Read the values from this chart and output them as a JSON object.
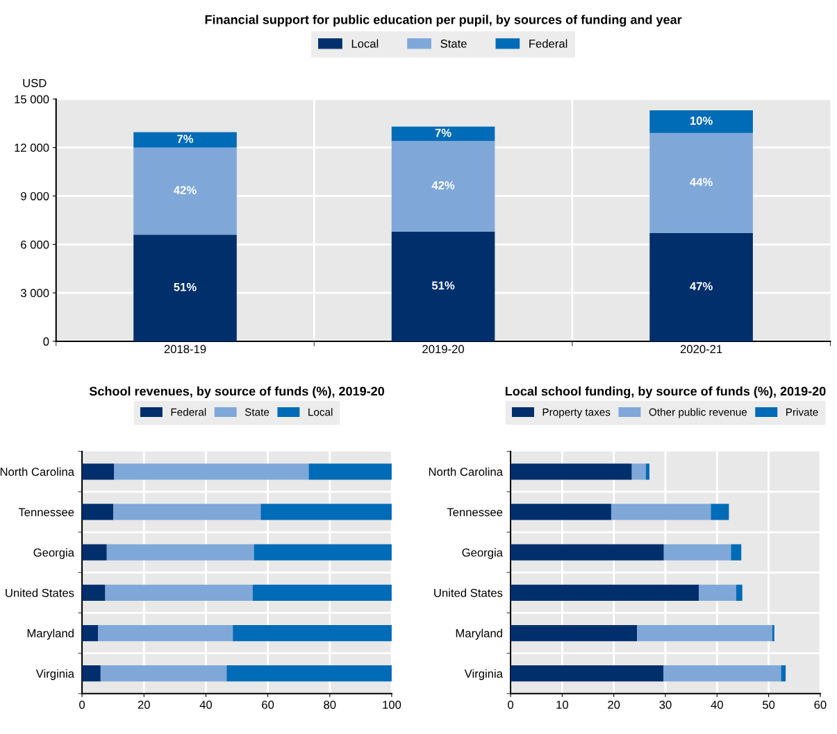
{
  "chart_data": [
    {
      "type": "bar",
      "title": "Financial support for public education per pupil, by sources of funding and year",
      "ylabel": "USD",
      "categories": [
        "2018-19",
        "2019-20",
        "2020-21"
      ],
      "stacked": true,
      "series": [
        {
          "name": "Local",
          "color": "#002f6c",
          "values": [
            6600,
            6800,
            6700
          ]
        },
        {
          "name": "State",
          "color": "#7fa8d9",
          "values": [
            5400,
            5600,
            6200
          ]
        },
        {
          "name": "Federal",
          "color": "#006bb6",
          "values": [
            950,
            900,
            1400
          ]
        }
      ],
      "annotations": [
        "51%",
        "42%",
        "7%",
        "51%",
        "42%",
        "7%",
        "47%",
        "44%",
        "10%"
      ],
      "ylim": [
        0,
        15000
      ],
      "yticks": [
        0,
        {
          "value": 3000,
          "label": "3 000"
        },
        {
          "value": 6000,
          "label": "6 000"
        },
        {
          "value": 9000,
          "label": "9 000"
        },
        {
          "value": 12000,
          "label": "12 000"
        },
        {
          "value": 15000,
          "label": "15 000"
        }
      ],
      "grid": true,
      "legend": "top"
    },
    {
      "type": "bar",
      "title": "School revenues, by source of funds (%), 2019-20",
      "orientation": "horizontal",
      "stacked": true,
      "categories": [
        "North Carolina",
        "Tennessee",
        "Georgia",
        "United States",
        "Maryland",
        "Virginia"
      ],
      "series": [
        {
          "name": "Federal",
          "color": "#002f6c",
          "values": [
            10.4,
            10.1,
            8.0,
            7.5,
            5.2,
            6.0
          ]
        },
        {
          "name": "State",
          "color": "#7fa8d9",
          "values": [
            62.8,
            47.6,
            47.5,
            47.6,
            43.5,
            40.7
          ]
        },
        {
          "name": "Local",
          "color": "#006bb6",
          "values": [
            26.8,
            42.3,
            44.5,
            44.9,
            51.3,
            53.3
          ]
        }
      ],
      "xlim": [
        0,
        100
      ],
      "xticks": [
        0,
        20,
        40,
        60,
        80,
        100
      ],
      "grid": true,
      "legend": "top"
    },
    {
      "type": "bar",
      "title": "Local school funding, by source of funds (%), 2019-20",
      "orientation": "horizontal",
      "stacked": true,
      "categories": [
        "North Carolina",
        "Tennessee",
        "Georgia",
        "United States",
        "Maryland",
        "Virginia"
      ],
      "series": [
        {
          "name": "Property taxes",
          "color": "#002f6c",
          "values": [
            23.5,
            19.5,
            29.7,
            36.5,
            24.5,
            29.6
          ]
        },
        {
          "name": "Other public revenue",
          "color": "#7fa8d9",
          "values": [
            2.7,
            19.3,
            13.0,
            7.2,
            26.2,
            22.8
          ]
        },
        {
          "name": "Private",
          "color": "#006bb6",
          "values": [
            0.7,
            3.5,
            2.0,
            1.2,
            0.4,
            0.9
          ]
        }
      ],
      "xlim": [
        0,
        60
      ],
      "xticks": [
        0,
        10,
        20,
        30,
        40,
        50,
        60
      ],
      "grid": true,
      "legend": "top"
    }
  ]
}
